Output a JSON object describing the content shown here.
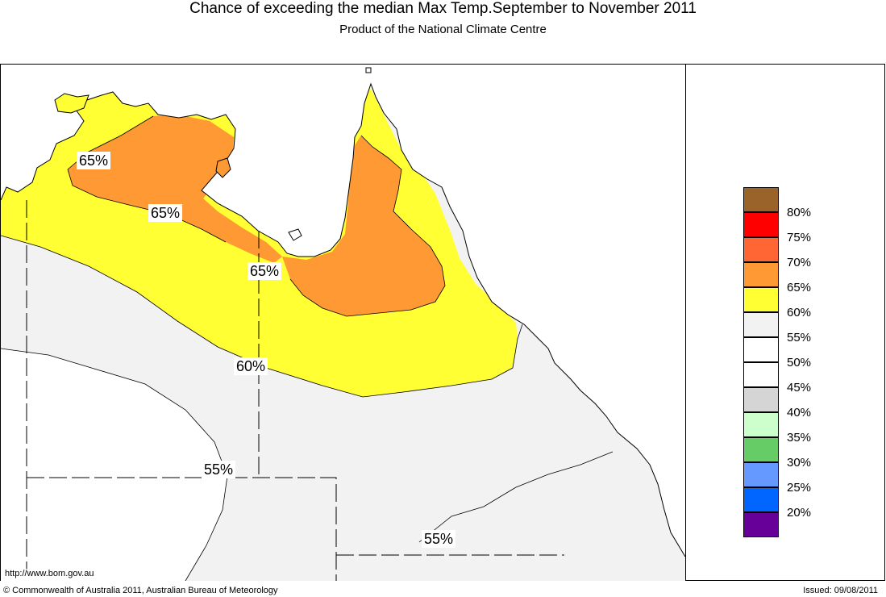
{
  "header": {
    "title": "Chance of exceeding the median Max Temp.September to November 2011",
    "subtitle": "Product of the National Climate Centre"
  },
  "map": {
    "contour_labels": [
      "65%",
      "65%",
      "65%",
      "60%",
      "55%",
      "55%"
    ],
    "url": "http://www.bom.gov.au"
  },
  "legend": {
    "items": [
      {
        "label": "80%",
        "color": "#99632a"
      },
      {
        "label": "75%",
        "color": "#ff0000"
      },
      {
        "label": "70%",
        "color": "#ff6633"
      },
      {
        "label": "65%",
        "color": "#ff9933"
      },
      {
        "label": "60%",
        "color": "#ffff33"
      },
      {
        "label": "55%",
        "color": "#f2f2f2"
      },
      {
        "label": "50%",
        "color": "#ffffff"
      },
      {
        "label": "45%",
        "color": "#ffffff"
      },
      {
        "label": "40%",
        "color": "#d5d5d5"
      },
      {
        "label": "35%",
        "color": "#ccffcc"
      },
      {
        "label": "30%",
        "color": "#66cc66"
      },
      {
        "label": "25%",
        "color": "#6699ff"
      },
      {
        "label": "20%",
        "color": "#0066ff"
      },
      {
        "label": "",
        "color": "#660099"
      }
    ]
  },
  "footer": {
    "copyright": "© Commonwealth of Australia 2011, Australian Bureau of Meteorology",
    "issued": "Issued: 09/08/2011"
  }
}
